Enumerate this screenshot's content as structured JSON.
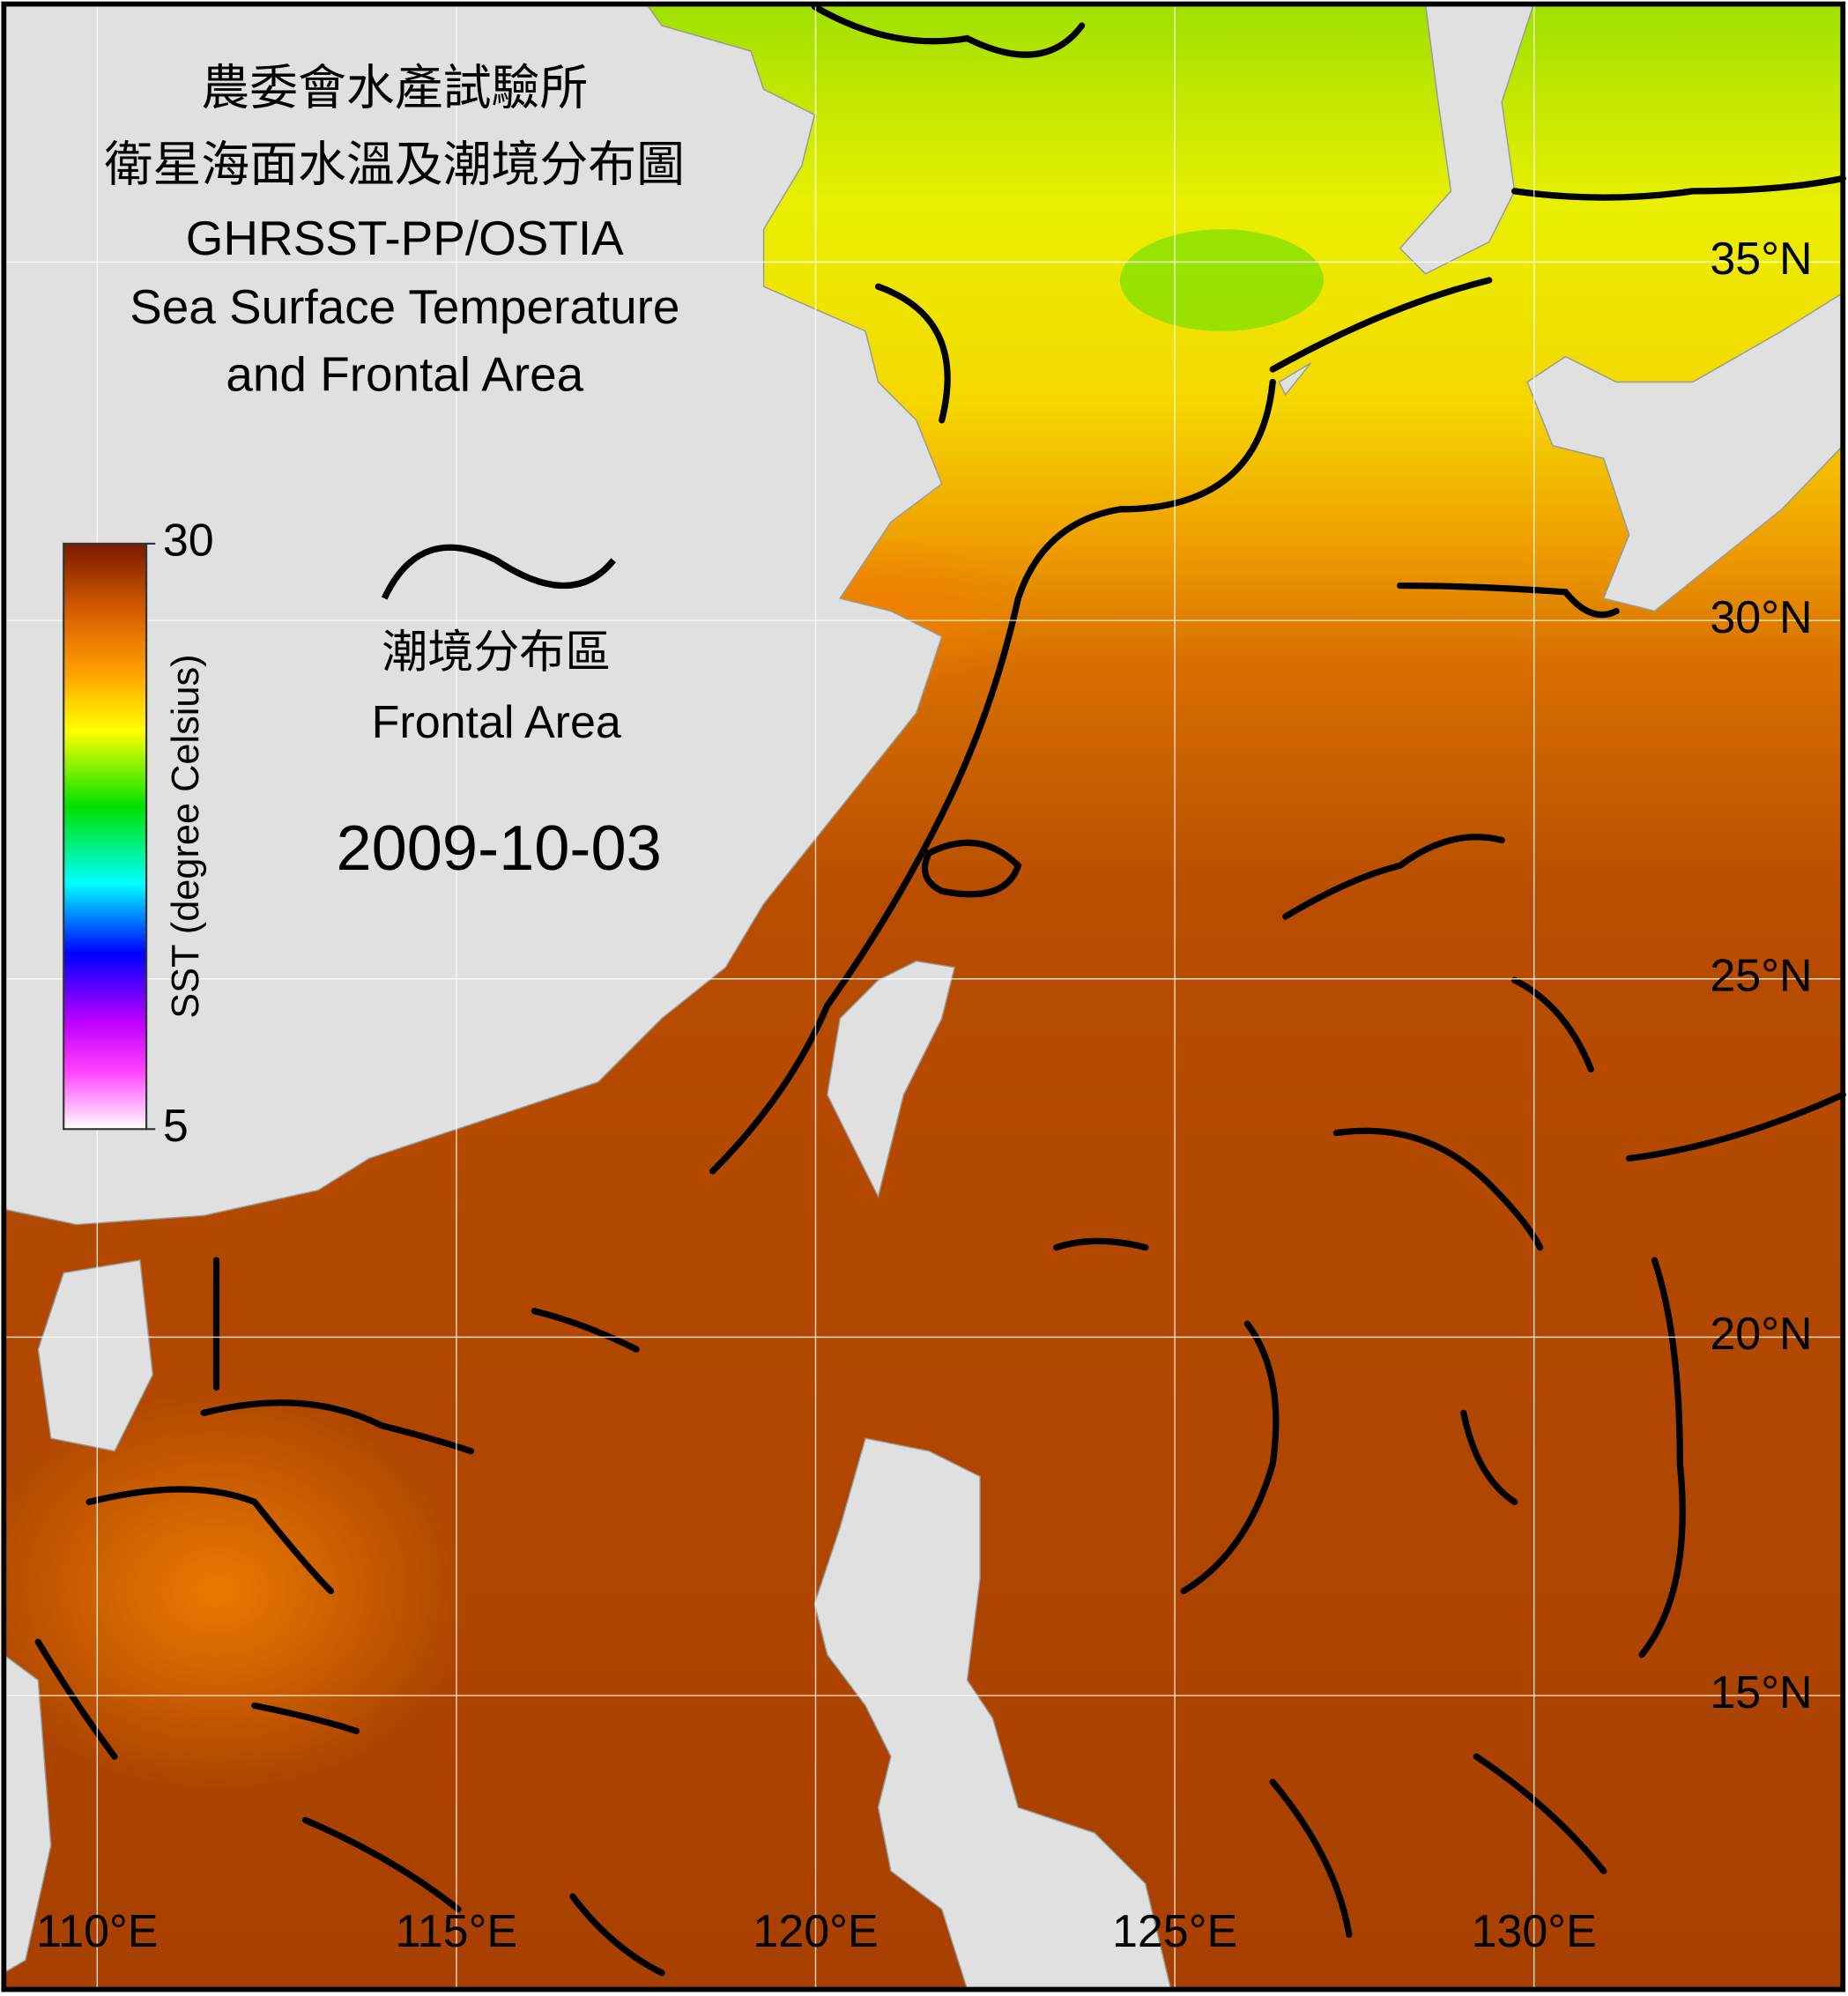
{
  "title": [
    "農委會水產試驗所",
    "衛星海面水溫及潮境分布圖",
    "GHRSST-PP/OSTIA",
    "Sea Surface Temperature",
    "and Frontal Area"
  ],
  "colorbar": {
    "label": "SST (degree Celsius)",
    "range": [
      5,
      30
    ],
    "ticks": [
      5,
      30
    ]
  },
  "legend": {
    "label_zh": "潮境分布區",
    "label_en": "Frontal Area"
  },
  "date": "2009-10-03",
  "map": {
    "xlim": [
      108.7,
      134.3
    ],
    "ylim": [
      10.9,
      38.6
    ],
    "xticks": [
      {
        "value": 110,
        "label": "110°E"
      },
      {
        "value": 115,
        "label": "115°E"
      },
      {
        "value": 120,
        "label": "120°E"
      },
      {
        "value": 125,
        "label": "125°E"
      },
      {
        "value": 130,
        "label": "130°E"
      }
    ],
    "yticks": [
      {
        "value": 15,
        "label": "15°N"
      },
      {
        "value": 20,
        "label": "20°N"
      },
      {
        "value": 25,
        "label": "25°N"
      },
      {
        "value": 30,
        "label": "30°N"
      },
      {
        "value": 35,
        "label": "35°N"
      }
    ]
  }
}
